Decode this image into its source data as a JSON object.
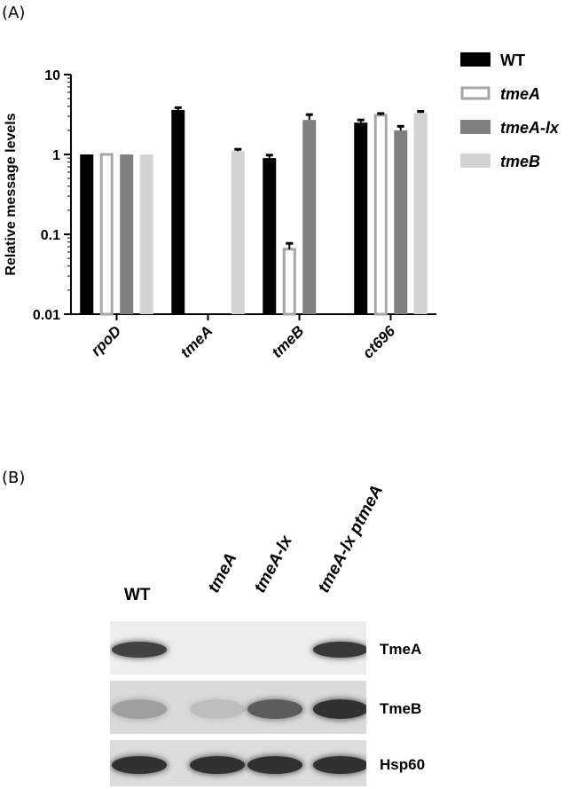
{
  "panel_a_label": "(A)",
  "panel_b_label": "(B)",
  "chart_data": {
    "type": "bar",
    "ylabel": "Relative message levels",
    "yscale": "log",
    "ylim": [
      0.01,
      10
    ],
    "yticks": [
      "0.01",
      "0.1",
      "1",
      "10"
    ],
    "categories": [
      "rpoD",
      "tmeA",
      "tmeB",
      "ct696"
    ],
    "series": [
      {
        "name": "WT",
        "values": [
          1.0,
          3.6,
          0.9,
          2.5
        ],
        "errors": [
          0.0,
          0.25,
          0.08,
          0.2
        ],
        "color": "#000000",
        "style": "solid"
      },
      {
        "name": "tmeA",
        "values": [
          1.0,
          null,
          0.065,
          3.1
        ],
        "errors": [
          0.0,
          0.0,
          0.012,
          0.15
        ],
        "color": "#a6a6a6",
        "style": "hollow"
      },
      {
        "name": "tmeA-lx",
        "values": [
          1.0,
          null,
          2.7,
          2.0
        ],
        "errors": [
          0.0,
          0.0,
          0.45,
          0.25
        ],
        "color": "#808080",
        "style": "solid"
      },
      {
        "name": "tmeB",
        "values": [
          1.0,
          1.1,
          null,
          3.3
        ],
        "errors": [
          0.0,
          0.06,
          0.0,
          0.15
        ],
        "color": "#d3d3d3",
        "style": "solid"
      }
    ],
    "legend_position": "right"
  },
  "blot": {
    "lanes": [
      "WT",
      "tmeA",
      "tmeA-lx",
      "tmeA-lx ptmeA"
    ],
    "rows": [
      {
        "name": "TmeA",
        "intensities": [
          0.85,
          0.0,
          0.0,
          0.9
        ]
      },
      {
        "name": "TmeB",
        "intensities": [
          0.3,
          0.12,
          0.7,
          0.95
        ]
      },
      {
        "name": "Hsp60",
        "intensities": [
          0.95,
          0.95,
          0.95,
          0.95
        ]
      }
    ]
  }
}
